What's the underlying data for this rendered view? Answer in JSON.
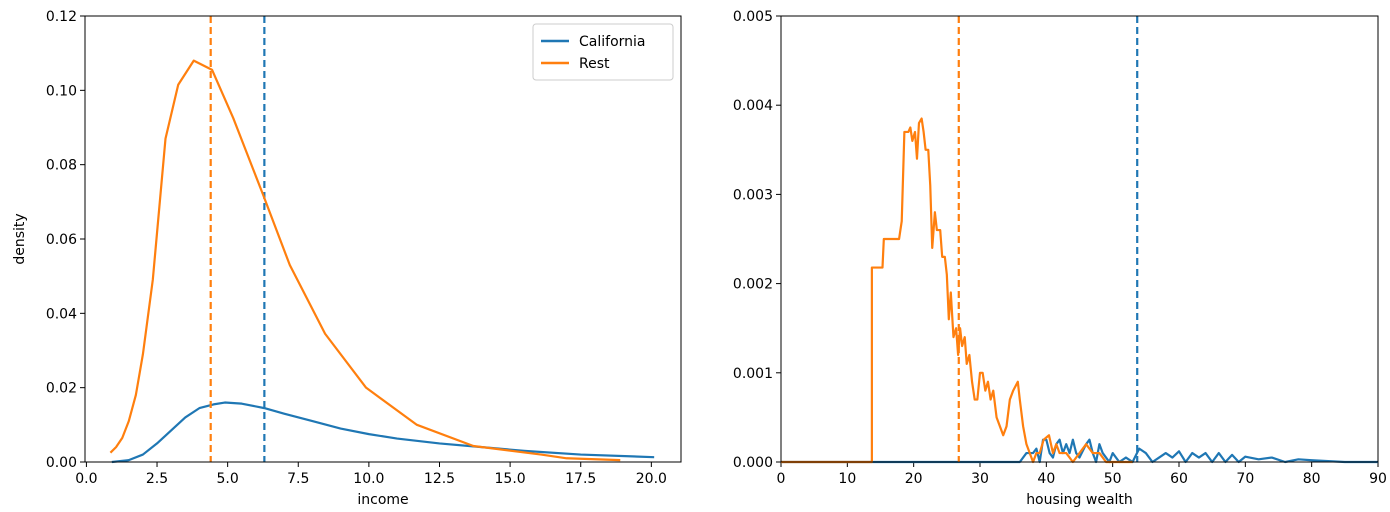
{
  "chart_data": [
    {
      "type": "line",
      "xlabel": "income",
      "ylabel": "density",
      "xlim": [
        -0.05,
        21.05
      ],
      "ylim": [
        0,
        0.12
      ],
      "xticks": [
        {
          "value": 0,
          "label": "0.0"
        },
        2.5,
        {
          "value": 5,
          "label": "5.0"
        },
        7.5,
        {
          "value": 10,
          "label": "10.0"
        },
        12.5,
        {
          "value": 15,
          "label": "15.0"
        },
        17.5,
        {
          "value": 20,
          "label": "20.0"
        }
      ],
      "yticks": [
        {
          "value": 0,
          "label": "0.00"
        },
        0.02,
        0.04,
        0.06,
        0.08,
        {
          "value": 0.1,
          "label": "0.10"
        },
        0.12
      ],
      "legend": "upper right",
      "series": [
        {
          "name": "California",
          "color": "#1f77b4",
          "mean": 6.3,
          "x": [
            0.9,
            1.5,
            2.0,
            2.5,
            3.0,
            3.5,
            4.0,
            4.5,
            4.9,
            5.5,
            6.3,
            7.0,
            8.0,
            9.0,
            10.0,
            11.0,
            12.5,
            14.0,
            15.5,
            17.5,
            20.1
          ],
          "values": [
            0.0,
            0.0005,
            0.002,
            0.005,
            0.0085,
            0.012,
            0.0145,
            0.0155,
            0.016,
            0.0157,
            0.0145,
            0.013,
            0.011,
            0.009,
            0.0075,
            0.0063,
            0.005,
            0.004,
            0.003,
            0.002,
            0.0013
          ]
        },
        {
          "name": "Rest",
          "color": "#ff7f0e",
          "mean": 4.4,
          "x": [
            0.85,
            1.05,
            1.27,
            1.5,
            1.75,
            2.0,
            2.35,
            2.8,
            3.25,
            3.8,
            4.45,
            5.2,
            6.25,
            7.2,
            8.45,
            9.9,
            11.7,
            13.7,
            16.1,
            17.0,
            18.9
          ],
          "values": [
            0.0025,
            0.004,
            0.0065,
            0.011,
            0.018,
            0.029,
            0.049,
            0.087,
            0.1015,
            0.108,
            0.1055,
            0.0925,
            0.072,
            0.053,
            0.0345,
            0.02,
            0.01,
            0.0043,
            0.002,
            0.001,
            0.0005
          ]
        }
      ]
    },
    {
      "type": "line",
      "xlabel": "housing wealth",
      "xlim": [
        0,
        90
      ],
      "ylim": [
        0,
        0.005
      ],
      "xticks": [
        0,
        10,
        20,
        30,
        40,
        50,
        60,
        70,
        80,
        90
      ],
      "yticks": [
        {
          "value": 0,
          "label": "0.000"
        },
        0.001,
        0.002,
        0.003,
        0.004,
        {
          "value": 0.005,
          "label": "0.005"
        }
      ],
      "series": [
        {
          "name": "California",
          "color": "#1f77b4",
          "mean": 53.7,
          "x": [
            0,
            36,
            37,
            38,
            38.5,
            39,
            39.5,
            40,
            40.5,
            41,
            41.5,
            42,
            42.5,
            43,
            43.5,
            44,
            44.5,
            45,
            46,
            46.5,
            47,
            47.5,
            48,
            48.5,
            49,
            49.5,
            50,
            51,
            52,
            53,
            54,
            55,
            56,
            57,
            58,
            59,
            60,
            61,
            62,
            63,
            64,
            65,
            66,
            67,
            68,
            69,
            70,
            72,
            74,
            76,
            78,
            80,
            85,
            90
          ],
          "values": [
            0,
            0,
            0.0001,
            0.0001,
            0.00015,
            0,
            0.00025,
            0.00025,
            0.0001,
            5e-05,
            0.0002,
            0.00025,
            0.0001,
            0.0002,
            0.0001,
            0.00025,
            0.0001,
            5e-05,
            0.0002,
            0.00025,
            0.0001,
            0,
            0.0002,
            0.0001,
            5e-05,
            0,
            0.0001,
            0,
            5e-05,
            0,
            0.00015,
            0.0001,
            0,
            5e-05,
            0.0001,
            5e-05,
            0.00012,
            0,
            0.0001,
            5e-05,
            0.0001,
            0,
            0.0001,
            0,
            8e-05,
            0,
            6e-05,
            3e-05,
            5e-05,
            0,
            3e-05,
            2e-05,
            0,
            0
          ]
        },
        {
          "name": "Rest",
          "color": "#ff7f0e",
          "mean": 26.8,
          "x": [
            0,
            13.7,
            13.7,
            15.3,
            15.5,
            17.8,
            18.2,
            18.6,
            19.2,
            19.5,
            19.8,
            20.2,
            20.5,
            20.8,
            21.2,
            21.5,
            21.8,
            22.2,
            22.5,
            22.8,
            23.2,
            23.5,
            24,
            24.3,
            24.7,
            25,
            25.3,
            25.6,
            26,
            26.4,
            26.7,
            27,
            27.3,
            27.7,
            28,
            28.4,
            28.8,
            29.2,
            29.6,
            30,
            30.4,
            30.8,
            31.2,
            31.6,
            32,
            32.5,
            33,
            33.5,
            34,
            34.5,
            35,
            35.7,
            36,
            36.5,
            37,
            37.5,
            38,
            38.5,
            39,
            39.6,
            40.4,
            41,
            41.5,
            42,
            43,
            44,
            45,
            46,
            47,
            48,
            49,
            53
          ],
          "values": [
            0,
            0,
            0.00218,
            0.00218,
            0.0025,
            0.0025,
            0.0027,
            0.0037,
            0.0037,
            0.00375,
            0.0036,
            0.0037,
            0.0034,
            0.0038,
            0.00385,
            0.0037,
            0.0035,
            0.0035,
            0.0031,
            0.0024,
            0.0028,
            0.0026,
            0.0026,
            0.0023,
            0.0023,
            0.0021,
            0.0016,
            0.0019,
            0.0014,
            0.0015,
            0.0012,
            0.0015,
            0.0013,
            0.0014,
            0.0011,
            0.0012,
            0.0009,
            0.0007,
            0.0007,
            0.001,
            0.001,
            0.0008,
            0.0009,
            0.0007,
            0.0008,
            0.0005,
            0.0004,
            0.0003,
            0.0004,
            0.0007,
            0.0008,
            0.0009,
            0.0007,
            0.0004,
            0.0002,
            0.0001,
            0,
            0.0001,
            0.0001,
            0.00025,
            0.0003,
            0.0001,
            0.0002,
            0.0001,
            0.0001,
            0,
            0.0001,
            0.0002,
            0.0001,
            0.0001,
            0,
            0
          ]
        }
      ]
    }
  ]
}
